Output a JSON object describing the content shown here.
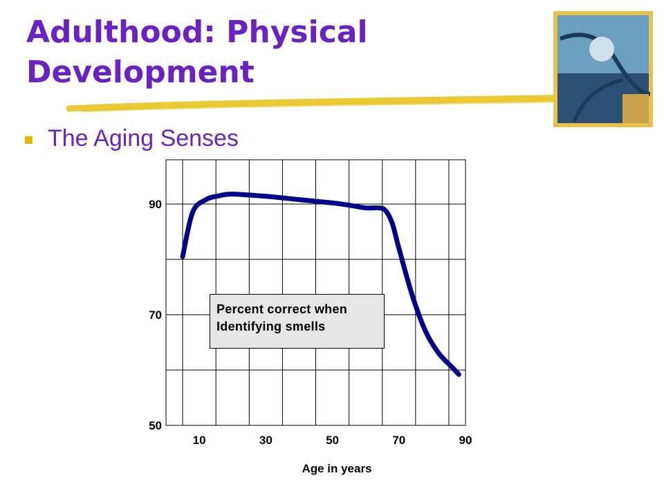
{
  "colors": {
    "title": "#6a22c4",
    "bullet": "#e8b800",
    "accent_line": "#e8c520",
    "curve": "#00008b",
    "grid": "#000000",
    "note_bg": "#e6e6e6",
    "thumbnail": "#e8c24a"
  },
  "slide": {
    "title_line1": "Adulthood: Physical",
    "title_line2": "Development",
    "bullet_text": "The Aging Senses",
    "thumbnail_icon": "book-cover-illustration-icon",
    "bullet_icon": "square-bullet-icon"
  },
  "chart_data": {
    "type": "line",
    "xlabel": "Age in years",
    "ylabel": "",
    "x_ticks": [
      10,
      30,
      50,
      70,
      90
    ],
    "y_ticks": [
      50,
      70,
      90
    ],
    "xlim": [
      0,
      90
    ],
    "ylim": [
      50,
      98
    ],
    "grid": true,
    "annotation": [
      "Percent correct when",
      "Identifying smells"
    ],
    "series": [
      {
        "x": [
          5,
          8,
          12,
          16,
          20,
          30,
          40,
          50,
          55,
          60,
          64,
          66,
          68,
          70,
          74,
          78,
          82,
          86,
          88
        ],
        "y": [
          80.5,
          88.5,
          90.8,
          91.5,
          91.8,
          91.4,
          90.8,
          90.2,
          89.8,
          89.3,
          89.3,
          88.8,
          86.5,
          82,
          73.5,
          67,
          63,
          60.5,
          59.2
        ]
      }
    ]
  }
}
